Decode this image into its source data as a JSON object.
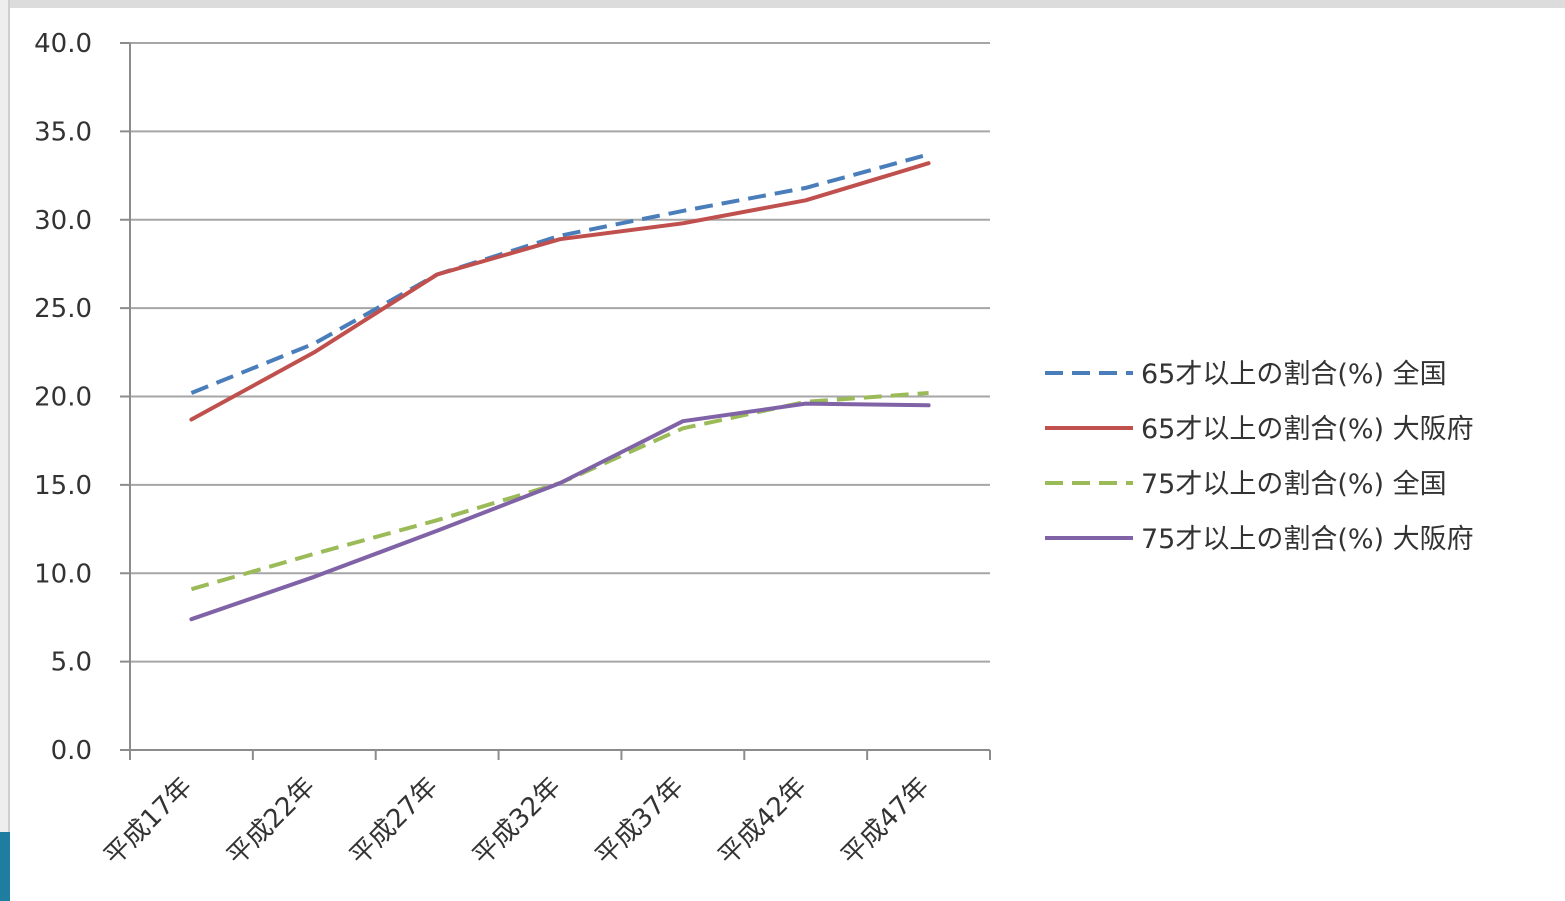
{
  "chart_data": {
    "type": "line",
    "title": "",
    "xlabel": "",
    "ylabel": "",
    "categories": [
      "平成17年",
      "平成22年",
      "平成27年",
      "平成32年",
      "平成37年",
      "平成42年",
      "平成47年"
    ],
    "ylim": [
      0,
      40
    ],
    "yticks": [
      "0.0",
      "5.0",
      "10.0",
      "15.0",
      "20.0",
      "25.0",
      "30.0",
      "35.0",
      "40.0"
    ],
    "grid": true,
    "legend_position": "right",
    "series": [
      {
        "name": "65才以上の割合(%) 全国",
        "color": "#4a7ebb",
        "dash": true,
        "values": [
          20.2,
          23.0,
          26.9,
          29.1,
          30.5,
          31.8,
          33.7
        ]
      },
      {
        "name": "65才以上の割合(%) 大阪府",
        "color": "#c0504d",
        "dash": false,
        "values": [
          18.7,
          22.5,
          26.9,
          28.9,
          29.8,
          31.1,
          33.2
        ]
      },
      {
        "name": "75才以上の割合(%) 全国",
        "color": "#9bbb59",
        "dash": true,
        "values": [
          9.1,
          11.1,
          13.0,
          15.1,
          18.2,
          19.7,
          20.2
        ]
      },
      {
        "name": "75才以上の割合(%) 大阪府",
        "color": "#7f63a6",
        "dash": false,
        "values": [
          7.4,
          9.8,
          12.4,
          15.1,
          18.6,
          19.6,
          19.5
        ]
      }
    ]
  }
}
